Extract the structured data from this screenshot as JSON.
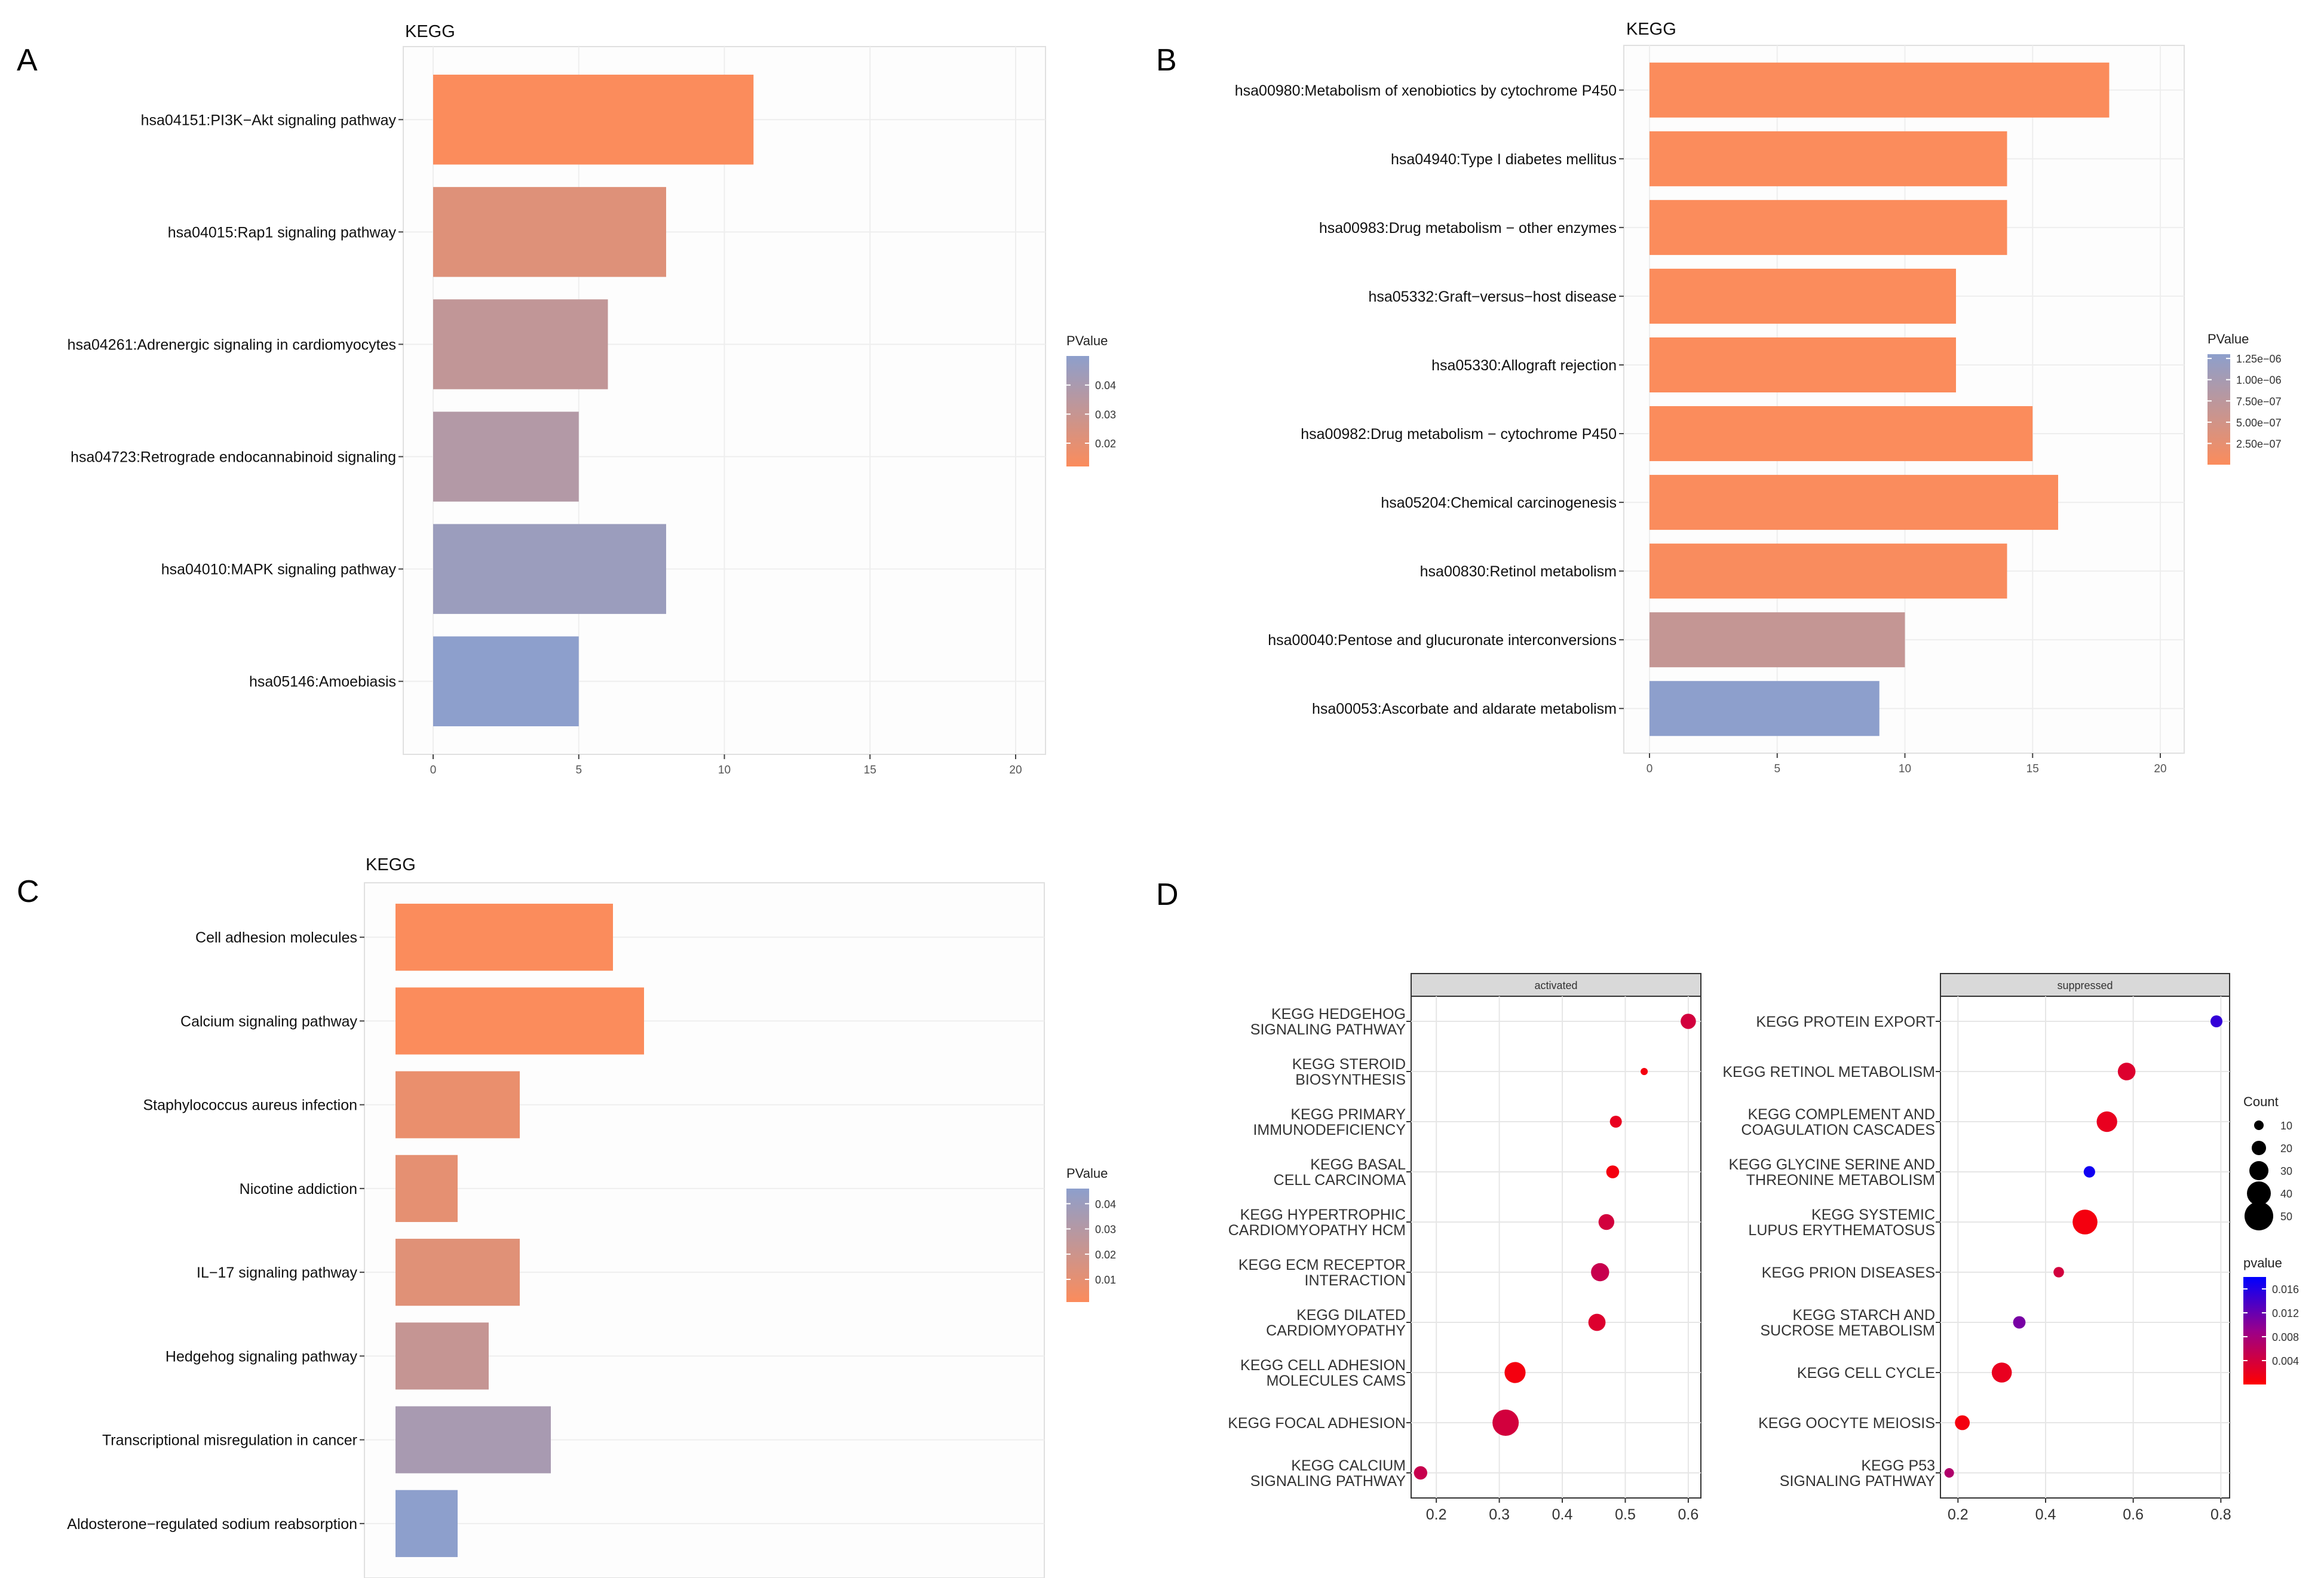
{
  "chart_data": [
    {
      "panel": "A",
      "type": "bar",
      "orientation": "horizontal",
      "title": "KEGG",
      "categories": [
        "hsa04151:PI3K−Akt signaling pathway",
        "hsa04015:Rap1 signaling pathway",
        "hsa04261:Adrenergic signaling in cardiomyocytes",
        "hsa04723:Retrograde endocannabinoid signaling",
        "hsa04010:MAPK signaling pathway",
        "hsa05146:Amoebiasis"
      ],
      "values": [
        11,
        8,
        6,
        5,
        8,
        5
      ],
      "pvalues": [
        0.012,
        0.022,
        0.032,
        0.037,
        0.045,
        0.05
      ],
      "xlim": [
        0,
        20
      ],
      "xticks": [
        0,
        5,
        10,
        15,
        20
      ],
      "grid": true,
      "legend": {
        "title": "PValue",
        "placement": "right",
        "range": [
          0.012,
          0.05
        ],
        "ticks": [
          0.04,
          0.03,
          0.02
        ],
        "tick_labels": [
          "0.04",
          "0.03",
          "0.02"
        ],
        "low_color": "#FB8C5C",
        "high_color": "#8D9FCC"
      }
    },
    {
      "panel": "B",
      "type": "bar",
      "orientation": "horizontal",
      "title": "KEGG",
      "categories": [
        "hsa00980:Metabolism of xenobiotics by cytochrome P450",
        "hsa04940:Type I diabetes mellitus",
        "hsa00983:Drug metabolism − other enzymes",
        "hsa05332:Graft−versus−host disease",
        "hsa05330:Allograft rejection",
        "hsa00982:Drug metabolism − cytochrome P450",
        "hsa05204:Chemical carcinogenesis",
        "hsa00830:Retinol metabolism",
        "hsa00040:Pentose and glucuronate interconversions",
        "hsa00053:Ascorbate and aldarate metabolism"
      ],
      "values": [
        18,
        14,
        14,
        12,
        12,
        15,
        16,
        14,
        10,
        9
      ],
      "pvalues": [
        1e-10,
        1e-09,
        2e-09,
        3e-09,
        4e-09,
        5e-09,
        1e-08,
        2e-08,
        6.5e-07,
        1.3e-06
      ],
      "xlim": [
        0,
        20
      ],
      "xticks": [
        0,
        5,
        10,
        15,
        20
      ],
      "grid": true,
      "legend": {
        "title": "PValue",
        "placement": "right",
        "range": [
          0,
          1.3e-06
        ],
        "ticks": [
          1.25e-06,
          1e-06,
          7.5e-07,
          5e-07,
          2.5e-07
        ],
        "tick_labels": [
          "1.25e−06",
          "1.00e−06",
          "7.50e−07",
          "5.00e−07",
          "2.50e−07"
        ],
        "low_color": "#FB8C5C",
        "high_color": "#8D9FCC"
      }
    },
    {
      "panel": "C",
      "type": "bar",
      "orientation": "horizontal",
      "title": "KEGG",
      "categories": [
        "Cell adhesion molecules",
        "Calcium signaling pathway",
        "Staphylococcus aureus infection",
        "Nicotine addiction",
        "IL−17 signaling pathway",
        "Hedgehog signaling pathway",
        "Transcriptional misregulation in cancer",
        "Aldosterone−regulated sodium reabsorption"
      ],
      "values": [
        7,
        8,
        4,
        2,
        4,
        3,
        5,
        2
      ],
      "pvalues": [
        0.001,
        0.001,
        0.008,
        0.01,
        0.012,
        0.023,
        0.035,
        0.046
      ],
      "grid": true,
      "legend": {
        "title": "PValue",
        "placement": "right",
        "range": [
          0.001,
          0.046
        ],
        "ticks": [
          0.04,
          0.03,
          0.02,
          0.01
        ],
        "tick_labels": [
          "0.04",
          "0.03",
          "0.02",
          "0.01"
        ],
        "low_color": "#FB8C5C",
        "high_color": "#8D9FCC"
      }
    },
    {
      "panel": "D",
      "type": "scatter",
      "subtype": "dot-plot",
      "facets": [
        {
          "name": "activated",
          "categories": [
            "KEGG HEDGEHOG SIGNALING PATHWAY",
            "KEGG STEROID BIOSYNTHESIS",
            "KEGG PRIMARY IMMUNODEFICIENCY",
            "KEGG BASAL CELL CARCINOMA",
            "KEGG HYPERTROPHIC CARDIOMYOPATHY HCM",
            "KEGG ECM RECEPTOR INTERACTION",
            "KEGG DILATED CARDIOMYOPATHY",
            "KEGG CELL ADHESION MOLECULES CAMS",
            "KEGG FOCAL ADHESION",
            "KEGG CALCIUM SIGNALING PATHWAY"
          ],
          "x": [
            0.6,
            0.53,
            0.485,
            0.48,
            0.47,
            0.46,
            0.455,
            0.325,
            0.31,
            0.175
          ],
          "count": [
            22,
            5,
            15,
            17,
            23,
            28,
            26,
            34,
            45,
            18
          ],
          "pvalue": [
            0.004,
            0.001,
            0.002,
            0.001,
            0.004,
            0.005,
            0.003,
            0.001,
            0.004,
            0.005
          ],
          "xlim": [
            0.16,
            0.62
          ],
          "xticks": [
            0.2,
            0.3,
            0.4,
            0.5,
            0.6
          ],
          "xtick_labels": [
            "0.2",
            "0.3",
            "0.4",
            "0.5",
            "0.6"
          ]
        },
        {
          "name": "suppressed",
          "categories": [
            "KEGG PROTEIN EXPORT",
            "KEGG RETINOL METABOLISM",
            "KEGG COMPLEMENT AND COAGULATION CASCADES",
            "KEGG GLYCINE SERINE AND THREONINE METABOLISM",
            "KEGG SYSTEMIC LUPUS ERYTHEMATOSUS",
            "KEGG PRION DISEASES",
            "KEGG STARCH AND SUCROSE METABOLISM",
            "KEGG CELL CYCLE",
            "KEGG OOCYTE MEIOSIS",
            "KEGG P53 SIGNALING PATHWAY"
          ],
          "x": [
            0.79,
            0.585,
            0.54,
            0.5,
            0.49,
            0.43,
            0.34,
            0.3,
            0.21,
            0.18
          ],
          "count": [
            15,
            27,
            33,
            14,
            42,
            12,
            16,
            32,
            21,
            10
          ],
          "pvalue": [
            0.015,
            0.003,
            0.002,
            0.017,
            0.001,
            0.004,
            0.011,
            0.002,
            0.001,
            0.007
          ],
          "xlim": [
            0.16,
            0.82
          ],
          "xticks": [
            0.2,
            0.4,
            0.6,
            0.8
          ],
          "xtick_labels": [
            "0.2",
            "0.4",
            "0.6",
            "0.8"
          ]
        }
      ],
      "size_legend": {
        "title": "Count",
        "values": [
          10,
          20,
          30,
          40,
          50
        ],
        "labels": [
          "10",
          "20",
          "30",
          "40",
          "50"
        ]
      },
      "color_legend": {
        "title": "pvalue",
        "range": [
          0,
          0.018
        ],
        "ticks": [
          0.016,
          0.012,
          0.008,
          0.004
        ],
        "tick_labels": [
          "0.016",
          "0.012",
          "0.008",
          "0.004"
        ],
        "low_color": "#FF0000",
        "high_color": "#0000FF"
      }
    }
  ]
}
